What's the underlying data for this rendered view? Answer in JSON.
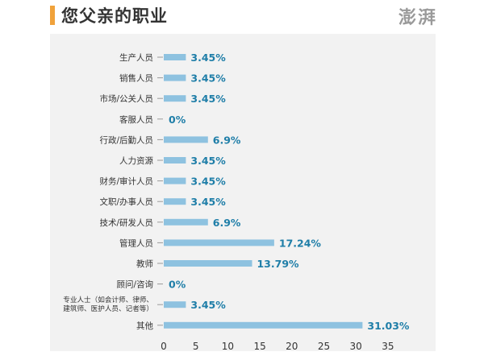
{
  "header": {
    "title": "您父亲的职业",
    "logo_text": "澎湃"
  },
  "colors": {
    "accent": "#f0a23b",
    "bar": "#8ec2e0",
    "label": "#1f7ea8",
    "panel": "#f2f2f2"
  },
  "chart_data": {
    "type": "bar",
    "orientation": "horizontal",
    "title": "",
    "xlabel": "",
    "ylabel": "",
    "categories": [
      "生产人员",
      "销售人员",
      "市场/公关人员",
      "客服人员",
      "行政/后勤人员",
      "人力资源",
      "财务/审计人员",
      "文职/办事人员",
      "技术/研发人员",
      "管理人员",
      "教师",
      "顾问/咨询",
      "专业人士（如会计师、律师、建筑师、医护人员、记者等）",
      "其他"
    ],
    "category_lines": [
      [
        "生产人员"
      ],
      [
        "销售人员"
      ],
      [
        "市场/公关人员"
      ],
      [
        "客服人员"
      ],
      [
        "行政/后勤人员"
      ],
      [
        "人力资源"
      ],
      [
        "财务/审计人员"
      ],
      [
        "文职/办事人员"
      ],
      [
        "技术/研发人员"
      ],
      [
        "管理人员"
      ],
      [
        "教师"
      ],
      [
        "顾问/咨询"
      ],
      [
        "专业人士（如会计师、律师、",
        "建筑师、医护人员、记者等）"
      ],
      [
        "其他"
      ]
    ],
    "values": [
      3.45,
      3.45,
      3.45,
      0,
      6.9,
      3.45,
      3.45,
      3.45,
      6.9,
      17.24,
      13.79,
      0,
      3.45,
      31.03
    ],
    "value_labels": [
      "3.45%",
      "3.45%",
      "3.45%",
      "0%",
      "6.9%",
      "3.45%",
      "3.45%",
      "3.45%",
      "6.9%",
      "17.24%",
      "13.79%",
      "0%",
      "3.45%",
      "31.03%"
    ],
    "xlim": [
      0,
      35
    ],
    "x_ticks": [
      0,
      5,
      10,
      15,
      20,
      25,
      30,
      35
    ],
    "grid": false,
    "legend": "none"
  }
}
